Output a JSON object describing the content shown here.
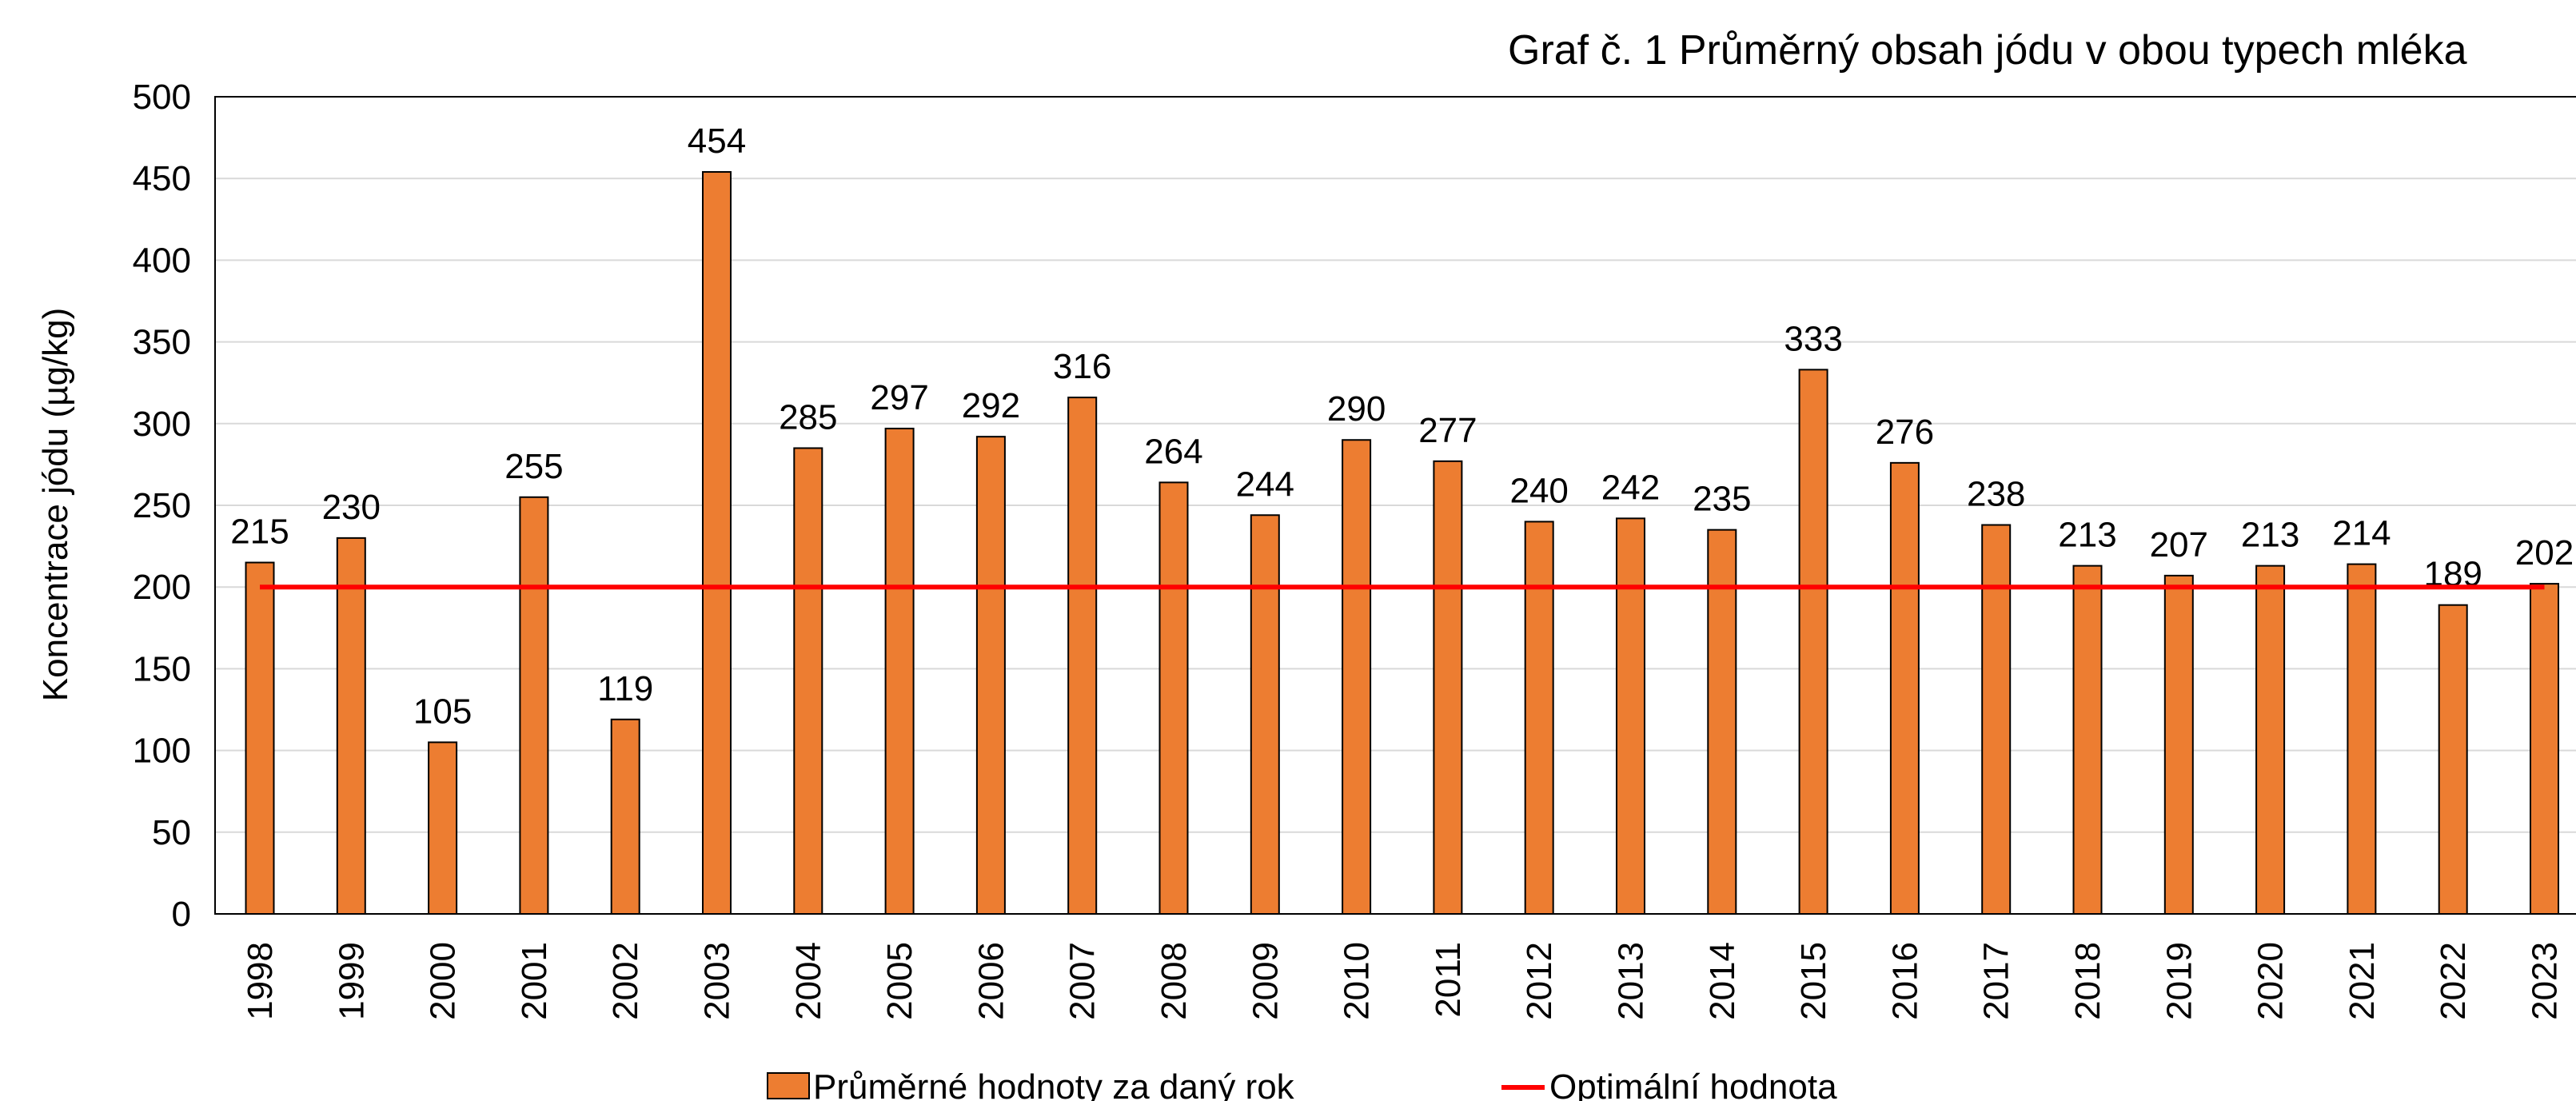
{
  "chart_data": {
    "type": "bar",
    "title": "Graf č. 1 Průměrný obsah jódu v obou typech mléka",
    "y_label": "Koncentrace jódu (µg/kg)",
    "categories": [
      "1998",
      "1999",
      "2000",
      "2001",
      "2002",
      "2003",
      "2004",
      "2005",
      "2006",
      "2007",
      "2008",
      "2009",
      "2010",
      "2011",
      "2012",
      "2013",
      "2014",
      "2015",
      "2016",
      "2017",
      "2018",
      "2019",
      "2020",
      "2021",
      "2022",
      "2023"
    ],
    "series": [
      {
        "name": "Průměrné hodnoty za daný rok",
        "type": "bar",
        "color": "#ed7d31",
        "values": [
          215,
          230,
          105,
          255,
          119,
          454,
          285,
          297,
          292,
          316,
          264,
          244,
          290,
          277,
          240,
          242,
          235,
          333,
          276,
          238,
          213,
          207,
          213,
          214,
          189,
          202
        ]
      },
      {
        "name": "Optimální hodnota",
        "type": "line",
        "color": "#ff0000",
        "values": [
          200,
          200,
          200,
          200,
          200,
          200,
          200,
          200,
          200,
          200,
          200,
          200,
          200,
          200,
          200,
          200,
          200,
          200,
          200,
          200,
          200,
          200,
          200,
          200,
          200,
          200
        ]
      }
    ],
    "ylim": [
      0,
      500
    ],
    "yticks": [
      0,
      50,
      100,
      150,
      200,
      250,
      300,
      350,
      400,
      450,
      500
    ],
    "grid": true,
    "legend": "bottom"
  }
}
